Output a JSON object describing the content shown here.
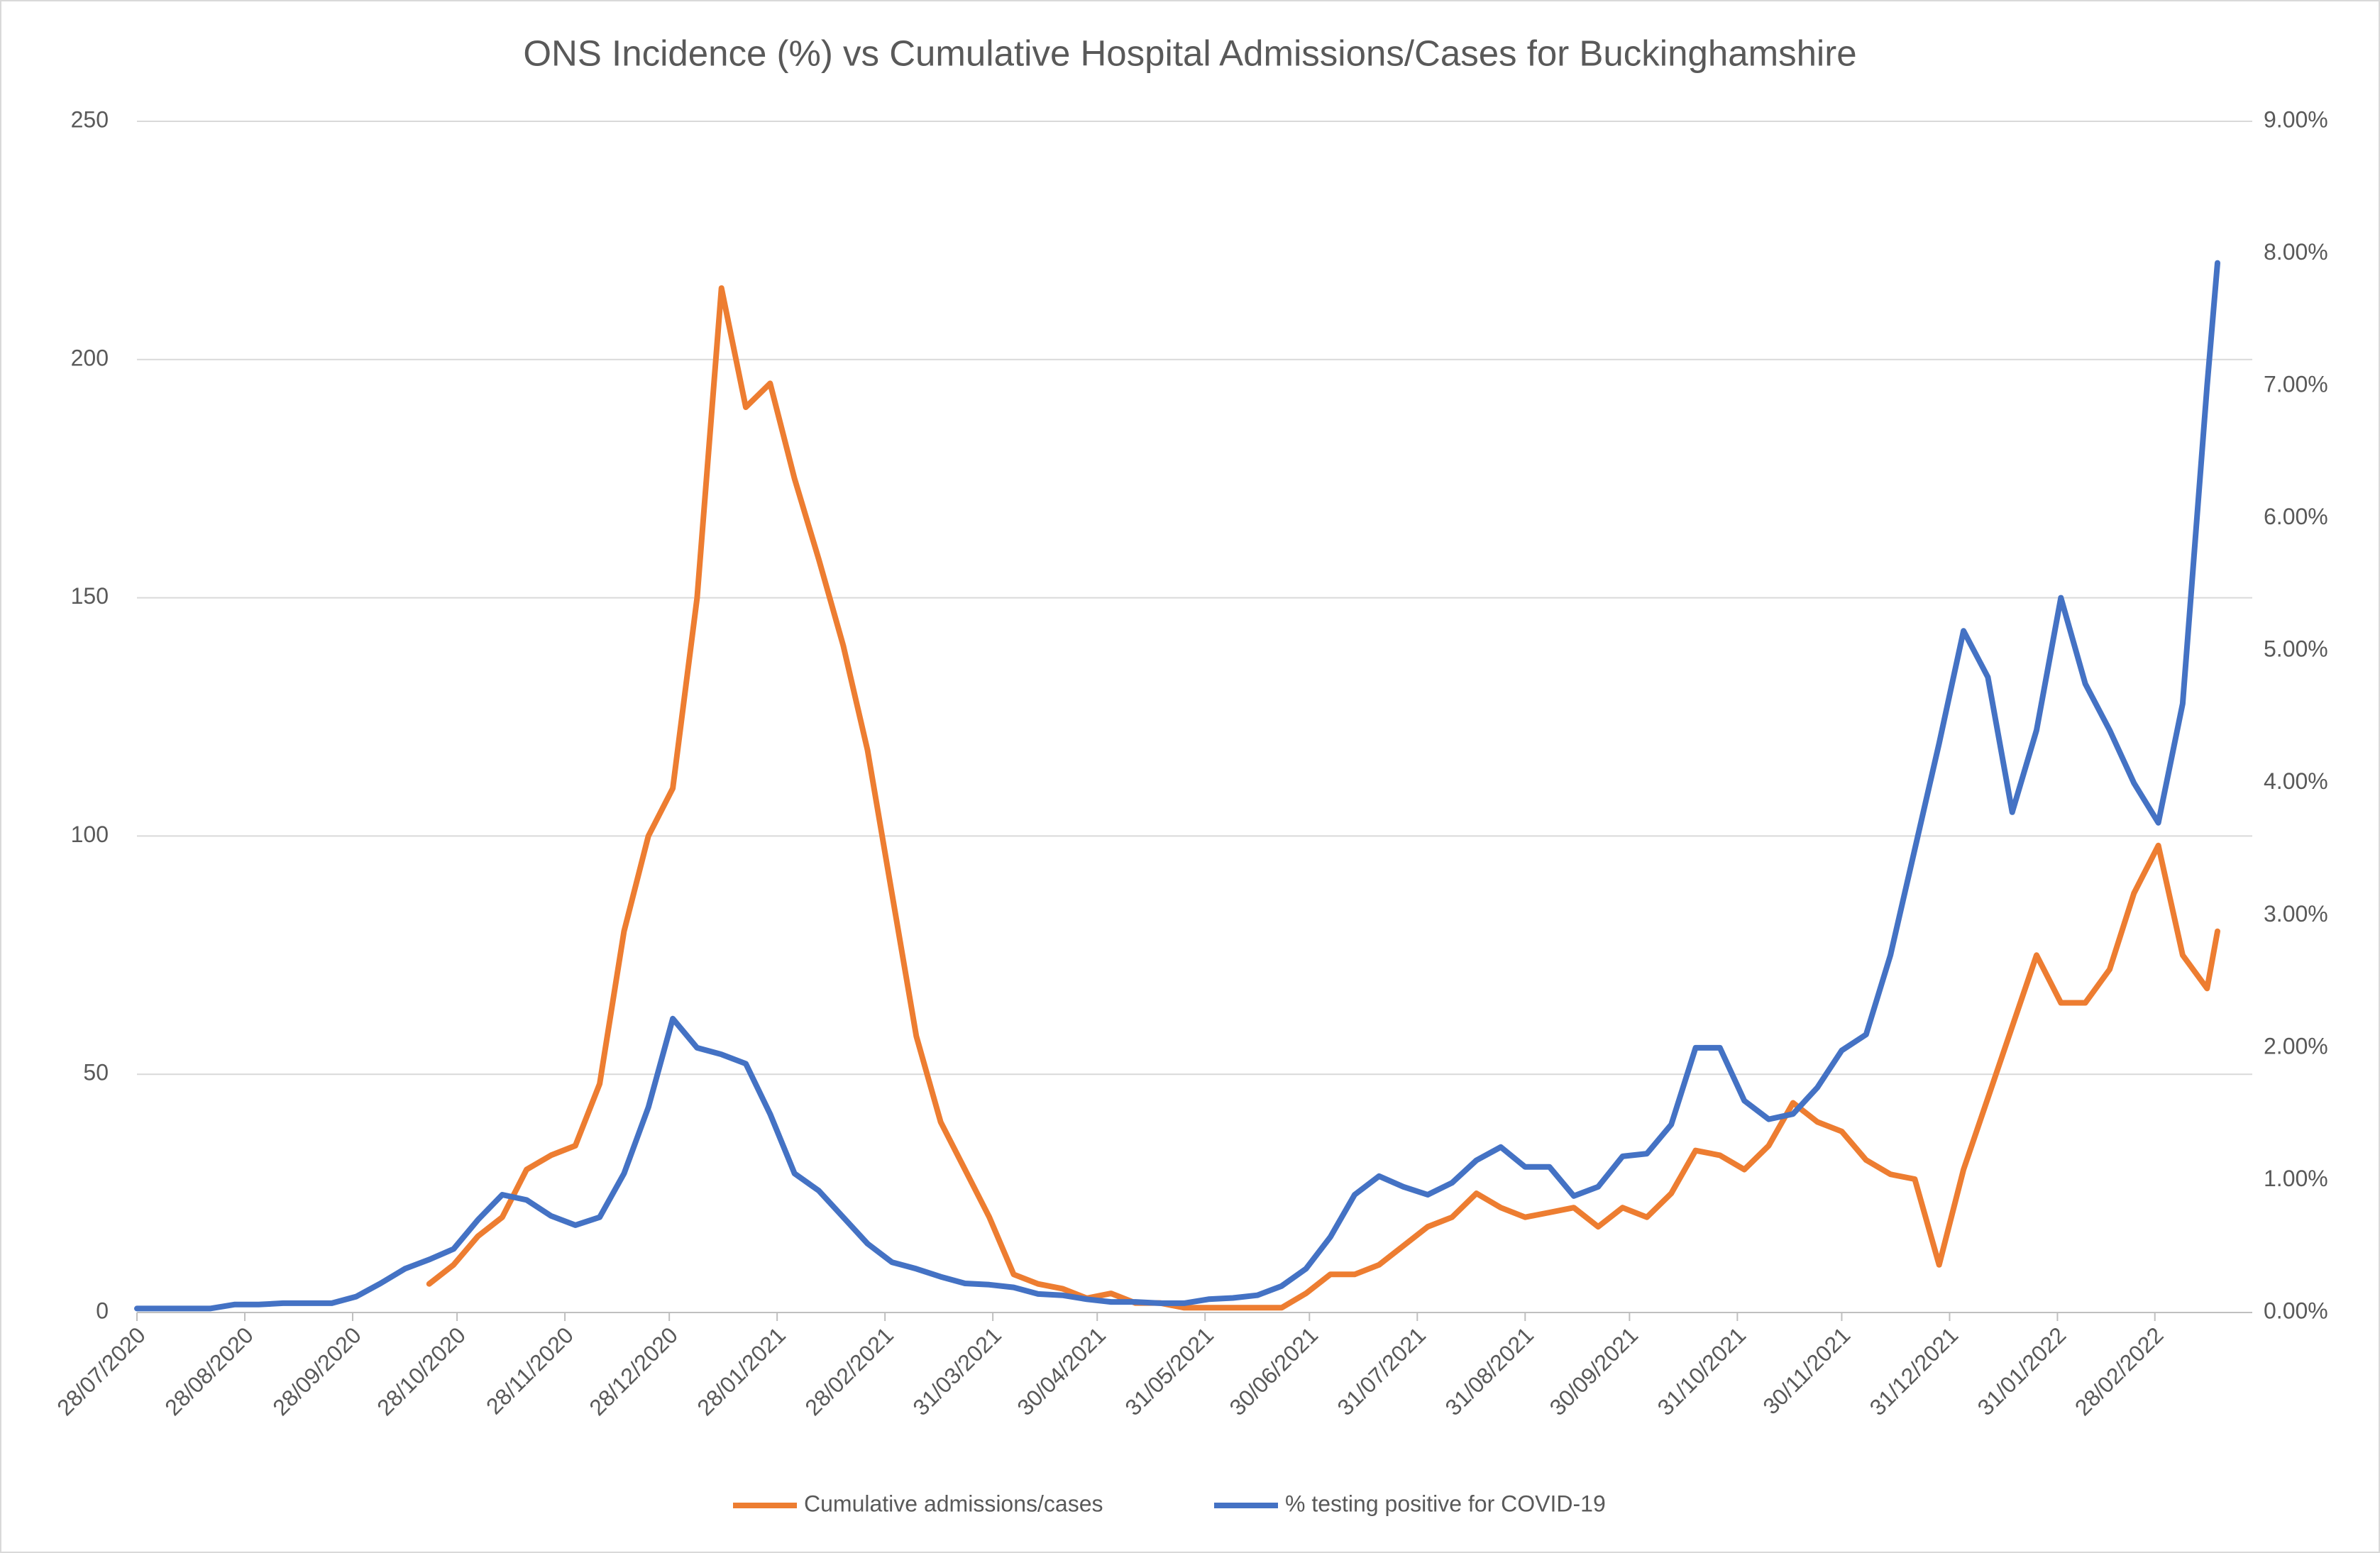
{
  "chart_data": {
    "type": "line",
    "title": "ONS Incidence (%) vs Cumulative Hospital Admissions/Cases for Buckinghamshire",
    "x": [
      "28/07/2020",
      "04/08/2020",
      "11/08/2020",
      "18/08/2020",
      "25/08/2020",
      "01/09/2020",
      "08/09/2020",
      "15/09/2020",
      "22/09/2020",
      "29/09/2020",
      "06/10/2020",
      "13/10/2020",
      "20/10/2020",
      "27/10/2020",
      "03/11/2020",
      "10/11/2020",
      "17/11/2020",
      "24/11/2020",
      "01/12/2020",
      "08/12/2020",
      "15/12/2020",
      "22/12/2020",
      "29/12/2020",
      "05/01/2021",
      "12/01/2021",
      "19/01/2021",
      "26/01/2021",
      "02/02/2021",
      "09/02/2021",
      "16/02/2021",
      "23/02/2021",
      "02/03/2021",
      "09/03/2021",
      "16/03/2021",
      "23/03/2021",
      "30/03/2021",
      "06/04/2021",
      "13/04/2021",
      "20/04/2021",
      "27/04/2021",
      "04/05/2021",
      "11/05/2021",
      "18/05/2021",
      "25/05/2021",
      "01/06/2021",
      "08/06/2021",
      "15/06/2021",
      "22/06/2021",
      "29/06/2021",
      "06/07/2021",
      "13/07/2021",
      "20/07/2021",
      "27/07/2021",
      "03/08/2021",
      "10/08/2021",
      "17/08/2021",
      "24/08/2021",
      "31/08/2021",
      "07/09/2021",
      "14/09/2021",
      "21/09/2021",
      "28/09/2021",
      "05/10/2021",
      "12/10/2021",
      "19/10/2021",
      "26/10/2021",
      "02/11/2021",
      "09/11/2021",
      "16/11/2021",
      "23/11/2021",
      "30/11/2021",
      "07/12/2021",
      "14/12/2021",
      "21/12/2021",
      "28/12/2021",
      "04/01/2022",
      "11/01/2022",
      "18/01/2022",
      "25/01/2022",
      "01/02/2022",
      "08/02/2022",
      "15/02/2022",
      "22/02/2022",
      "01/03/2022",
      "08/03/2022",
      "15/03/2022",
      "18/03/2022"
    ],
    "series": [
      {
        "name": "Cumulative admissions/cases",
        "color": "#ed7d31",
        "values": [
          null,
          null,
          null,
          null,
          null,
          null,
          null,
          null,
          null,
          null,
          null,
          null,
          6,
          10,
          16,
          20,
          30,
          33,
          35,
          48,
          80,
          100,
          110,
          150,
          215,
          190,
          195,
          175,
          158,
          140,
          118,
          88,
          58,
          40,
          30,
          20,
          8,
          6,
          5,
          3,
          4,
          2,
          2,
          1,
          1,
          1,
          1,
          1,
          4,
          8,
          8,
          10,
          14,
          18,
          20,
          25,
          22,
          20,
          21,
          22,
          18,
          22,
          20,
          25,
          34,
          33,
          30,
          35,
          44,
          40,
          38,
          32,
          29,
          28,
          10,
          30,
          45,
          60,
          75,
          65,
          65,
          72,
          88,
          98,
          75,
          68,
          80
        ]
      },
      {
        "name": "% testing positive for COVID-19",
        "color": "#4472c4",
        "axis": "y2",
        "values": [
          0.03,
          0.03,
          0.03,
          0.03,
          0.06,
          0.06,
          0.07,
          0.07,
          0.07,
          0.12,
          0.22,
          0.33,
          0.4,
          0.48,
          0.7,
          0.89,
          0.85,
          0.73,
          0.66,
          0.72,
          1.05,
          1.55,
          2.22,
          2.0,
          1.95,
          1.88,
          1.5,
          1.05,
          0.92,
          0.72,
          0.52,
          0.38,
          0.33,
          0.27,
          0.22,
          0.21,
          0.19,
          0.14,
          0.13,
          0.1,
          0.08,
          0.08,
          0.07,
          0.07,
          0.1,
          0.11,
          0.13,
          0.2,
          0.33,
          0.57,
          0.89,
          1.03,
          0.95,
          0.89,
          0.98,
          1.15,
          1.25,
          1.1,
          1.1,
          0.88,
          0.95,
          1.18,
          1.2,
          1.42,
          2.0,
          2.0,
          1.6,
          1.46,
          1.5,
          1.7,
          1.98,
          2.1,
          2.7,
          3.5,
          4.3,
          5.15,
          4.8,
          3.78,
          4.4,
          5.4,
          4.75,
          4.4,
          4.0,
          3.7,
          4.6,
          7.0,
          7.93
        ]
      }
    ],
    "xlim": [
      "28/07/2020",
      "28/03/2022"
    ],
    "xticks": [
      "28/07/2020",
      "28/08/2020",
      "28/09/2020",
      "28/10/2020",
      "28/11/2020",
      "28/12/2020",
      "28/01/2021",
      "28/02/2021",
      "31/03/2021",
      "30/04/2021",
      "31/05/2021",
      "30/06/2021",
      "31/07/2021",
      "31/08/2021",
      "30/09/2021",
      "31/10/2021",
      "30/11/2021",
      "31/12/2021",
      "31/01/2022",
      "28/02/2022"
    ],
    "ylim": [
      0,
      250
    ],
    "yticks": [
      0,
      50,
      100,
      150,
      200,
      250
    ],
    "y2lim": [
      0,
      9
    ],
    "y2ticks": [
      {
        "value": 0,
        "label": "0.00%"
      },
      {
        "value": 1,
        "label": "1.00%"
      },
      {
        "value": 2,
        "label": "2.00%"
      },
      {
        "value": 3,
        "label": "3.00%"
      },
      {
        "value": 4,
        "label": "4.00%"
      },
      {
        "value": 5,
        "label": "5.00%"
      },
      {
        "value": 6,
        "label": "6.00%"
      },
      {
        "value": 7,
        "label": "7.00%"
      },
      {
        "value": 8,
        "label": "8.00%"
      },
      {
        "value": 9,
        "label": "9.00%"
      }
    ],
    "grid": true,
    "legend": "bottom"
  }
}
